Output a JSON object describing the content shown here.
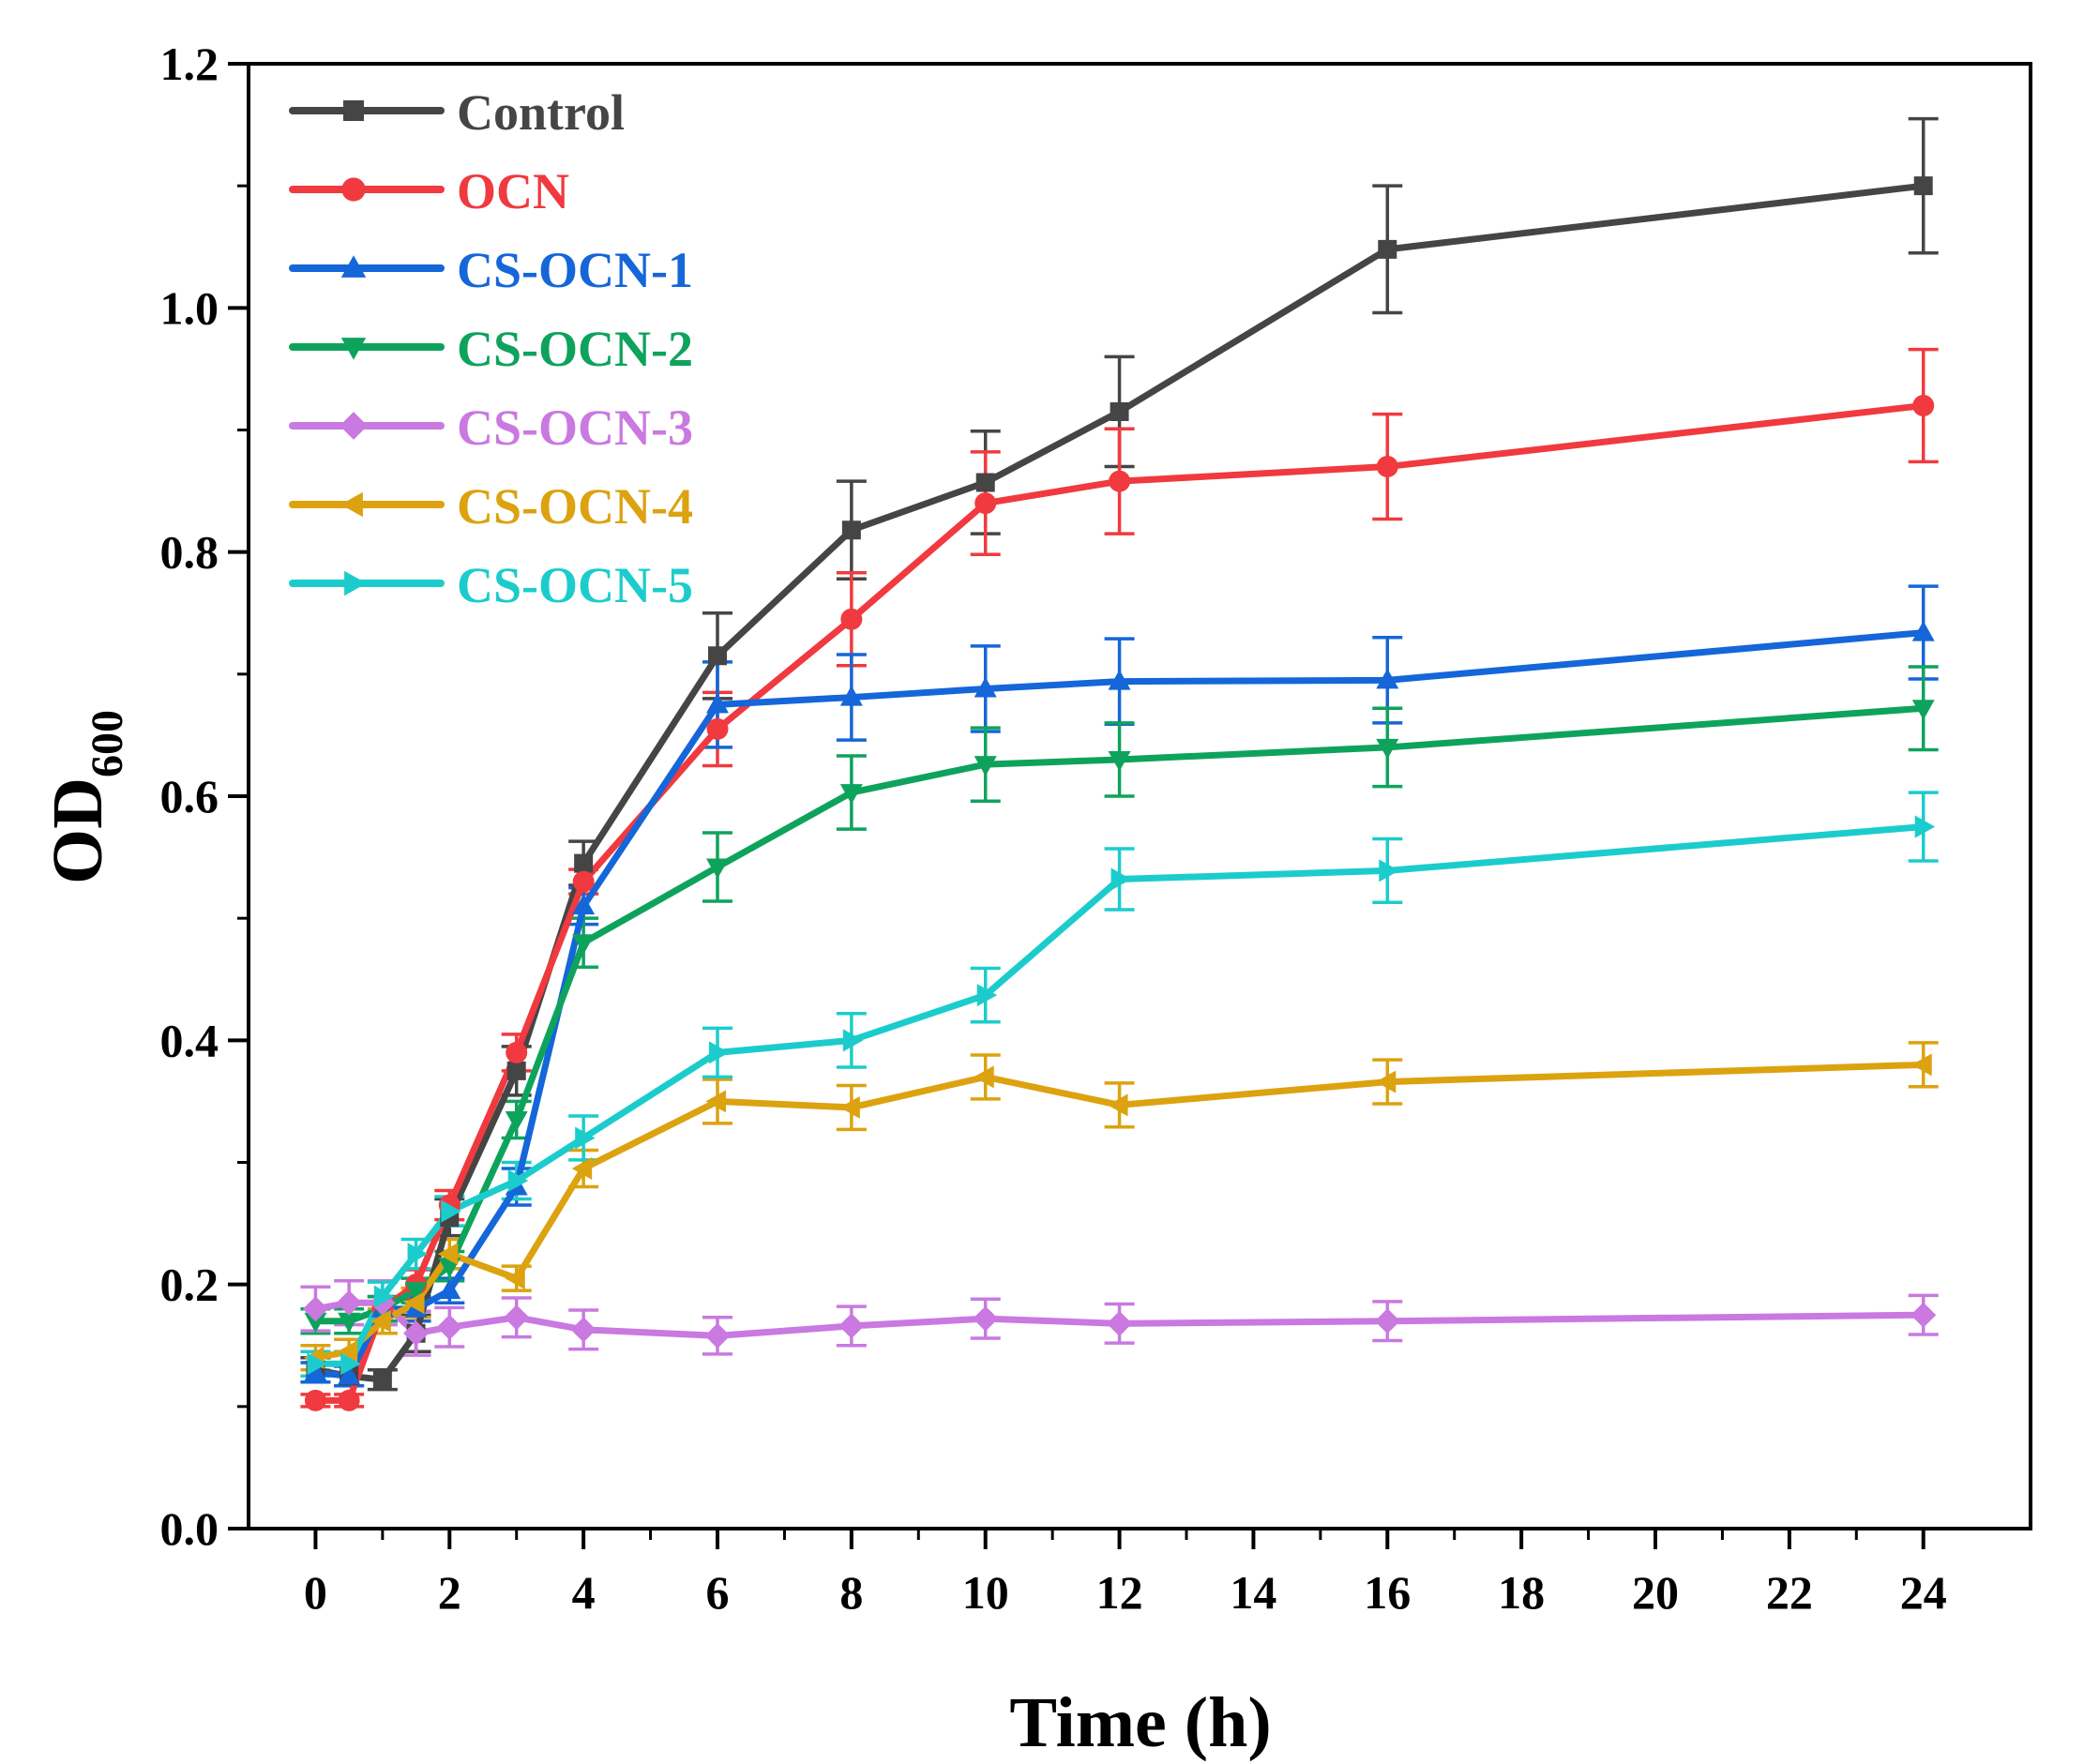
{
  "chart_data": {
    "type": "line",
    "title": "",
    "xlabel": "Time (h)",
    "ylabel_main": "OD",
    "ylabel_sub": "600",
    "xlim": [
      -1,
      25.6
    ],
    "ylim": [
      0.0,
      1.2
    ],
    "xticks": [
      0,
      2,
      4,
      6,
      8,
      10,
      12,
      14,
      16,
      18,
      20,
      22,
      24
    ],
    "xtick_labels": [
      "0",
      "2",
      "4",
      "6",
      "8",
      "10",
      "12",
      "14",
      "16",
      "18",
      "20",
      "22",
      "24"
    ],
    "yticks": [
      0.0,
      0.2,
      0.4,
      0.6,
      0.8,
      1.0,
      1.2
    ],
    "ytick_labels": [
      "0.0",
      "0.2",
      "0.4",
      "0.6",
      "0.8",
      "1.0",
      "1.2"
    ],
    "legend_position": "top-left",
    "x": [
      0,
      0.5,
      1,
      1.5,
      2,
      3,
      4,
      6,
      8,
      10,
      12,
      16,
      24
    ],
    "series": [
      {
        "name": "Control",
        "color": "#454545",
        "marker": "square",
        "values": [
          0.13,
          0.125,
          0.122,
          0.16,
          0.255,
          0.375,
          0.545,
          0.715,
          0.818,
          0.857,
          0.915,
          1.048,
          1.1
        ],
        "errors": [
          0.01,
          0.008,
          0.008,
          0.015,
          0.015,
          0.02,
          0.018,
          0.035,
          0.04,
          0.042,
          0.045,
          0.052,
          0.055
        ]
      },
      {
        "name": "OCN",
        "color": "#f03a3f",
        "marker": "circle",
        "values": [
          0.105,
          0.105,
          0.18,
          0.2,
          0.265,
          0.39,
          0.53,
          0.655,
          0.745,
          0.84,
          0.858,
          0.87,
          0.92
        ],
        "errors": [
          0.005,
          0.005,
          0.01,
          0.012,
          0.012,
          0.015,
          0.01,
          0.03,
          0.038,
          0.042,
          0.043,
          0.043,
          0.046
        ]
      },
      {
        "name": "CS-OCN-1",
        "color": "#1566d8",
        "marker": "triangle-up",
        "values": [
          0.128,
          0.125,
          0.18,
          0.18,
          0.195,
          0.28,
          0.51,
          0.675,
          0.681,
          0.688,
          0.694,
          0.695,
          0.734
        ],
        "errors": [
          0.008,
          0.008,
          0.01,
          0.01,
          0.01,
          0.015,
          0.015,
          0.035,
          0.035,
          0.035,
          0.035,
          0.035,
          0.038
        ]
      },
      {
        "name": "CS-OCN-2",
        "color": "#0ea35c",
        "marker": "triangle-down",
        "values": [
          0.17,
          0.17,
          0.18,
          0.195,
          0.215,
          0.335,
          0.48,
          0.542,
          0.603,
          0.626,
          0.63,
          0.64,
          0.672
        ],
        "errors": [
          0.01,
          0.01,
          0.01,
          0.01,
          0.012,
          0.015,
          0.02,
          0.028,
          0.03,
          0.03,
          0.03,
          0.032,
          0.034
        ]
      },
      {
        "name": "CS-OCN-3",
        "color": "#c979e0",
        "marker": "diamond",
        "values": [
          0.18,
          0.185,
          0.185,
          0.16,
          0.165,
          0.173,
          0.163,
          0.158,
          0.166,
          0.172,
          0.168,
          0.17,
          0.175
        ],
        "errors": [
          0.018,
          0.018,
          0.018,
          0.018,
          0.016,
          0.016,
          0.016,
          0.015,
          0.016,
          0.016,
          0.016,
          0.016,
          0.016
        ]
      },
      {
        "name": "CS-OCN-4",
        "color": "#dca20f",
        "marker": "triangle-left",
        "values": [
          0.14,
          0.145,
          0.17,
          0.185,
          0.225,
          0.205,
          0.295,
          0.35,
          0.345,
          0.37,
          0.347,
          0.366,
          0.38
        ],
        "errors": [
          0.01,
          0.01,
          0.01,
          0.012,
          0.012,
          0.01,
          0.015,
          0.018,
          0.018,
          0.018,
          0.018,
          0.018,
          0.018
        ]
      },
      {
        "name": "CS-OCN-5",
        "color": "#1ccccc",
        "marker": "triangle-right",
        "values": [
          0.135,
          0.135,
          0.19,
          0.225,
          0.26,
          0.285,
          0.32,
          0.39,
          0.4,
          0.437,
          0.532,
          0.539,
          0.575
        ],
        "errors": [
          0.01,
          0.01,
          0.012,
          0.012,
          0.012,
          0.015,
          0.018,
          0.02,
          0.022,
          0.022,
          0.025,
          0.026,
          0.028
        ]
      }
    ]
  }
}
